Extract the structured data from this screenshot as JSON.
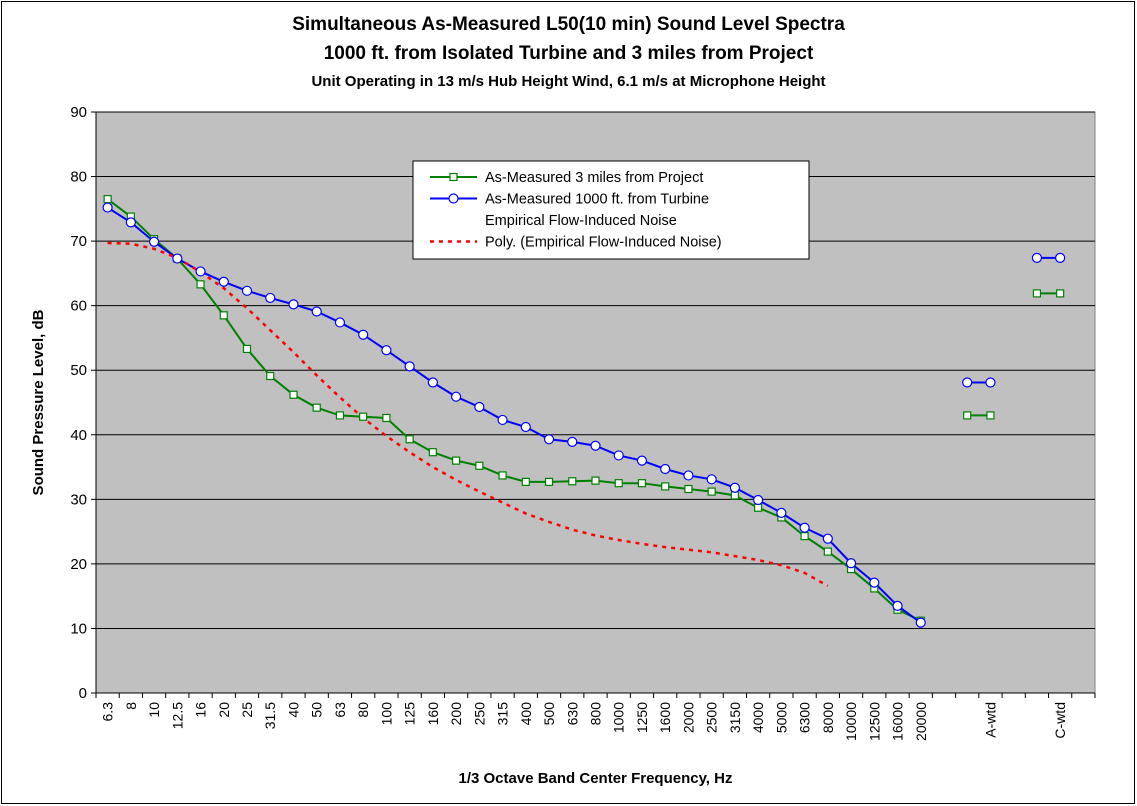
{
  "chart_data": {
    "type": "line",
    "title": "Simultaneous As-Measured L50(10 min) Sound Level Spectra",
    "subtitle": "1000 ft. from Isolated Turbine and 3 miles from Project",
    "subtitle2": "Unit Operating in 13 m/s Hub Height Wind, 6.1 m/s at Microphone Height",
    "xlabel": "1/3 Octave Band Center Frequency, Hz",
    "ylabel": "Sound Pressure Level, dB",
    "ylim": [
      0,
      90
    ],
    "yticks": [
      "0",
      "10",
      "20",
      "30",
      "40",
      "50",
      "60",
      "70",
      "80",
      "90"
    ],
    "grid": "horizontal",
    "legend_position": "top-center",
    "categories": [
      "6.3",
      "8",
      "10",
      "12.5",
      "16",
      "20",
      "25",
      "31.5",
      "40",
      "50",
      "63",
      "80",
      "100",
      "125",
      "160",
      "200",
      "250",
      "315",
      "400",
      "500",
      "630",
      "800",
      "1000",
      "1250",
      "1600",
      "2000",
      "2500",
      "3150",
      "4000",
      "5000",
      "6300",
      "8000",
      "10000",
      "12500",
      "16000",
      "20000",
      "",
      "",
      "A-wtd",
      "",
      "",
      "C-wtd",
      ""
    ],
    "series": [
      {
        "name": "As-Measured 3 miles from Project",
        "color": "#008000",
        "marker": "square",
        "values": [
          76.5,
          73.8,
          70.3,
          67.3,
          63.3,
          58.5,
          53.3,
          49.1,
          46.2,
          44.2,
          43.0,
          42.8,
          42.6,
          39.3,
          37.3,
          36.0,
          35.2,
          33.7,
          32.7,
          32.7,
          32.8,
          32.9,
          32.5,
          32.5,
          32.0,
          31.6,
          31.2,
          30.6,
          28.7,
          27.2,
          24.3,
          21.9,
          19.2,
          16.2,
          12.9,
          11.2,
          null,
          null,
          null,
          null,
          null,
          null,
          null
        ]
      },
      {
        "name": "As-Measured 1000 ft. from Turbine",
        "color": "#0000ff",
        "marker": "circle",
        "values": [
          75.2,
          72.9,
          69.9,
          67.3,
          65.3,
          63.7,
          62.3,
          61.2,
          60.2,
          59.1,
          57.4,
          55.5,
          53.1,
          50.6,
          48.1,
          45.9,
          44.3,
          42.3,
          41.2,
          39.3,
          38.9,
          38.3,
          36.8,
          36.0,
          34.7,
          33.7,
          33.1,
          31.8,
          29.9,
          27.9,
          25.6,
          23.9,
          20.1,
          17.1,
          13.5,
          10.9,
          null,
          null,
          null,
          null,
          null,
          null,
          null
        ]
      },
      {
        "name": "Poly. (Empirical Flow-Induced Noise)",
        "color": "#ff0000",
        "style": "dotted",
        "values": [
          69.7,
          69.6,
          68.8,
          67.4,
          65.2,
          62.7,
          59.6,
          56.2,
          52.8,
          49.2,
          45.8,
          42.6,
          39.8,
          37.3,
          35.0,
          33.0,
          31.2,
          29.5,
          27.8,
          26.5,
          25.3,
          24.4,
          23.7,
          23.1,
          22.6,
          22.2,
          21.8,
          21.2,
          20.6,
          19.8,
          18.6,
          16.6,
          null,
          null,
          null,
          null,
          null,
          null,
          null,
          null,
          null,
          null,
          null
        ]
      }
    ],
    "weighted_series": [
      {
        "name": "As-Measured 3 miles from Project",
        "A-wtd": 43.0,
        "C-wtd": 61.9
      },
      {
        "name": "As-Measured 1000 ft. from Turbine",
        "A-wtd": 48.1,
        "C-wtd": 67.4
      }
    ],
    "legend_entries": [
      {
        "label": "As-Measured 3 miles from Project",
        "color": "#008000",
        "marker": "square",
        "line": "solid"
      },
      {
        "label": "As-Measured 1000 ft. from Turbine",
        "color": "#0000ff",
        "marker": "circle",
        "line": "solid"
      },
      {
        "label": "Empirical Flow-Induced Noise",
        "color": null,
        "marker": "none",
        "line": "none"
      },
      {
        "label": "Poly. (Empirical Flow-Induced Noise)",
        "color": "#ff0000",
        "marker": "none",
        "line": "dotted"
      }
    ],
    "colors": {
      "plot_background": "#c0c0c0",
      "gridline": "#000000"
    }
  }
}
